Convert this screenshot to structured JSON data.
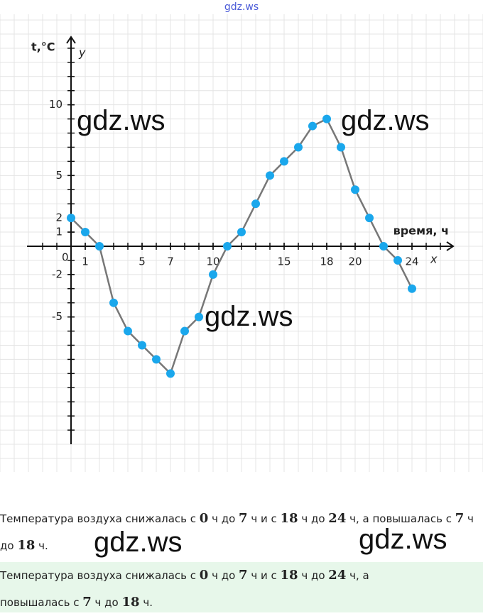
{
  "header": {
    "watermark": "gdz.ws"
  },
  "chart_data": {
    "type": "line",
    "y_label": "t,°C",
    "y_axis_name": "y",
    "x_label": "время, ч",
    "x_axis_name": "x",
    "origin_label": "0",
    "x": [
      0,
      1,
      2,
      3,
      4,
      5,
      6,
      7,
      8,
      9,
      10,
      11,
      12,
      13,
      14,
      15,
      16,
      17,
      18,
      19,
      20,
      21,
      22,
      23,
      24
    ],
    "series": [
      {
        "color": "#1aa7ec",
        "values": [
          2,
          1,
          0,
          -4,
          -6,
          -7,
          -8,
          -9,
          -6,
          -5,
          -2,
          0,
          1,
          3,
          5,
          6,
          7,
          8.5,
          9,
          7,
          4,
          2,
          0,
          -1,
          -3
        ]
      }
    ],
    "line_color": "#777777",
    "xlim": [
      -3.1,
      26.9
    ],
    "ylim": [
      -14,
      14.8
    ],
    "xticks": [
      1,
      5,
      7,
      10,
      15,
      18,
      20,
      24
    ],
    "yticks": [
      10,
      5,
      2,
      1,
      -2,
      -5
    ],
    "grid": true
  },
  "watermarks": [
    "gdz.ws",
    "gdz.ws",
    "gdz.ws",
    "gdz.ws",
    "gdz.ws"
  ],
  "paragraphs": [
    {
      "segments": [
        {
          "text": "Температура воздуха снижалась с ",
          "bold": false
        },
        {
          "text": "0",
          "bold": true
        },
        {
          "text": " ч до ",
          "bold": false
        },
        {
          "text": "7",
          "bold": true
        },
        {
          "text": " ч и с ",
          "bold": false
        },
        {
          "text": "18",
          "bold": true
        },
        {
          "text": " ч до ",
          "bold": false
        },
        {
          "text": "24",
          "bold": true
        },
        {
          "text": " ч, а повышалась с ",
          "bold": false
        },
        {
          "text": "7",
          "bold": true
        },
        {
          "text": " ч до ",
          "bold": false
        },
        {
          "text": "18",
          "bold": true
        },
        {
          "text": " ч.",
          "bold": false
        }
      ]
    },
    {
      "segments": [
        {
          "text": "Температура воздуха снижалась с ",
          "bold": false
        },
        {
          "text": "0",
          "bold": true
        },
        {
          "text": " ч до ",
          "bold": false
        },
        {
          "text": "7",
          "bold": true
        },
        {
          "text": " ч и с ",
          "bold": false
        },
        {
          "text": "18",
          "bold": true
        },
        {
          "text": " ч до ",
          "bold": false
        },
        {
          "text": "24",
          "bold": true
        },
        {
          "text": " ч, а повышалась с ",
          "bold": false
        },
        {
          "text": "7",
          "bold": true
        },
        {
          "text": " ч до ",
          "bold": false
        },
        {
          "text": "18",
          "bold": true
        },
        {
          "text": " ч.",
          "bold": false
        }
      ]
    }
  ]
}
